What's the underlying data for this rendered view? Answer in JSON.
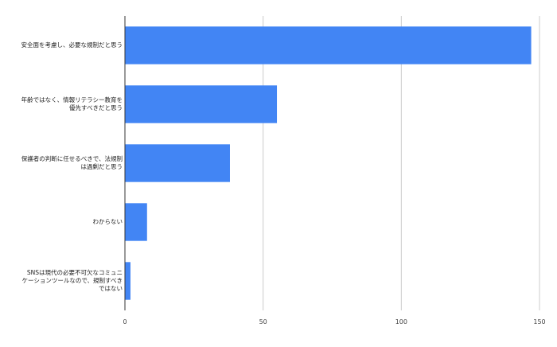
{
  "chart_data": {
    "type": "bar",
    "orientation": "horizontal",
    "categories": [
      "安全面を考慮し、必要な規制だと思う",
      "年齢ではなく、情報リテラシー教育を\n優先すべきだと思う",
      "保護者の判断に任せるべきで、法規制\nは過剰だと思う",
      "わからない",
      "SNSは現代の必要不可欠なコミュニ\nケーションツールなので、規制すべき\nではない"
    ],
    "values": [
      147,
      55,
      38,
      8,
      2
    ],
    "xlim": [
      0,
      150
    ],
    "xticks": [
      "0",
      "50",
      "100",
      "150"
    ],
    "grid": true,
    "bar_color": "#4285f4",
    "grid_color": "#cccccc",
    "axis_color": "#333333"
  }
}
